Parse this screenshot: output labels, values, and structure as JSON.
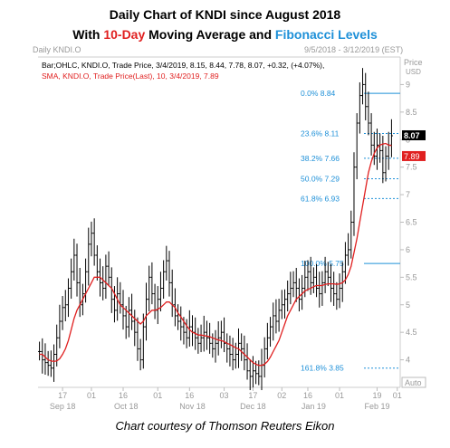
{
  "title_line1": "Daily Chart of KNDI since August 2018",
  "title_line2": {
    "prefix": "With ",
    "ma": "10-Day",
    "middle": " Moving Average and ",
    "fib": "Fibonacci Levels"
  },
  "credit": "Chart courtesy of Thomson Reuters Eikon",
  "colors": {
    "price_bars": "#000000",
    "sma": "#e02020",
    "fib": "#1e90d8",
    "tick_text": "#999999"
  },
  "chart_data": {
    "type": "line",
    "header_left": "Daily KNDI.O",
    "header_right": "9/5/2018 - 3/12/2019 (EST)",
    "price_label": "Price",
    "price_unit": "USD",
    "auto_label": "Auto",
    "legend": [
      {
        "name": "Bar;OHLC, KNDI.O, Trade Price, 3/4/2019, 8.15, 8.44, 7.78, 8.07, +0.32, (+4.07%),"
      },
      {
        "name": "SMA, KNDI.O, Trade Price(Last), 10, 3/4/2019, 7.89"
      }
    ],
    "ylim": [
      3.5,
      9.5
    ],
    "yticks": [
      "4",
      "4.5",
      "5",
      "5.5",
      "6",
      "6.5",
      "7",
      "7.5",
      "8",
      "8.5",
      "9"
    ],
    "xticks": [
      {
        "label": "17",
        "i": 8
      },
      {
        "label": "01",
        "i": 18
      },
      {
        "label": "16",
        "i": 29
      },
      {
        "label": "01",
        "i": 41
      },
      {
        "label": "16",
        "i": 52
      },
      {
        "label": "03",
        "i": 64
      },
      {
        "label": "17",
        "i": 74
      },
      {
        "label": "02",
        "i": 84
      },
      {
        "label": "16",
        "i": 93
      },
      {
        "label": "01",
        "i": 104
      },
      {
        "label": "19",
        "i": 117
      },
      {
        "label": "01",
        "i": 124
      }
    ],
    "months": [
      {
        "label": "Sep 18",
        "i": 8
      },
      {
        "label": "Oct 18",
        "i": 30
      },
      {
        "label": "Nov 18",
        "i": 53
      },
      {
        "label": "Dec 18",
        "i": 74
      },
      {
        "label": "Jan 19",
        "i": 95
      },
      {
        "label": "Feb 19",
        "i": 117
      }
    ],
    "last_price": "8.07",
    "last_sma": "7.89",
    "fib_levels": [
      {
        "pct": "0.0%",
        "value": 8.84
      },
      {
        "pct": "23.6%",
        "value": 8.11
      },
      {
        "pct": "38.2%",
        "value": 7.66
      },
      {
        "pct": "50.0%",
        "value": 7.29
      },
      {
        "pct": "61.8%",
        "value": 6.93
      },
      {
        "pct": "100.0%",
        "value": 5.75
      },
      {
        "pct": "161.8%",
        "value": 3.85
      }
    ],
    "closes": [
      4.15,
      4.0,
      3.95,
      3.9,
      3.85,
      4.1,
      4.4,
      4.7,
      4.95,
      5.0,
      5.3,
      5.6,
      5.9,
      5.4,
      5.0,
      5.2,
      5.6,
      6.1,
      6.3,
      5.9,
      5.6,
      5.4,
      5.3,
      5.7,
      5.5,
      5.1,
      4.9,
      5.2,
      5.0,
      4.8,
      4.6,
      4.9,
      4.7,
      4.5,
      4.2,
      4.0,
      4.6,
      5.1,
      5.5,
      5.2,
      4.9,
      5.1,
      5.3,
      5.6,
      5.8,
      5.4,
      5.0,
      4.8,
      4.7,
      4.6,
      4.5,
      4.4,
      4.6,
      4.5,
      4.4,
      4.3,
      4.4,
      4.5,
      4.4,
      4.3,
      4.2,
      4.3,
      4.4,
      4.5,
      4.3,
      4.2,
      4.1,
      4.0,
      4.1,
      4.3,
      4.2,
      4.0,
      3.8,
      3.7,
      3.8,
      3.75,
      3.7,
      3.9,
      4.2,
      4.4,
      4.6,
      4.8,
      4.7,
      4.9,
      5.0,
      5.1,
      5.2,
      5.3,
      5.4,
      5.3,
      5.1,
      5.3,
      5.5,
      5.6,
      5.4,
      5.5,
      5.3,
      5.2,
      5.4,
      5.6,
      5.5,
      5.3,
      5.2,
      5.1,
      5.3,
      5.6,
      5.9,
      6.0,
      6.5,
      7.5,
      8.3,
      8.8,
      9.0,
      8.6,
      8.3,
      7.9,
      7.7,
      7.9,
      7.8,
      7.4,
      7.7,
      7.9,
      8.07
    ],
    "sma": [
      4.1,
      4.1,
      4.05,
      4.0,
      3.98,
      3.97,
      3.98,
      4.02,
      4.1,
      4.2,
      4.35,
      4.55,
      4.75,
      4.9,
      5.0,
      5.1,
      5.2,
      5.3,
      5.4,
      5.5,
      5.5,
      5.5,
      5.45,
      5.4,
      5.35,
      5.3,
      5.2,
      5.1,
      5.0,
      4.95,
      4.9,
      4.85,
      4.8,
      4.75,
      4.7,
      4.65,
      4.7,
      4.8,
      4.85,
      4.9,
      4.9,
      4.92,
      4.95,
      5.0,
      5.05,
      5.05,
      5.0,
      4.95,
      4.85,
      4.78,
      4.7,
      4.62,
      4.55,
      4.5,
      4.48,
      4.45,
      4.45,
      4.44,
      4.43,
      4.42,
      4.4,
      4.38,
      4.36,
      4.35,
      4.33,
      4.3,
      4.28,
      4.25,
      4.22,
      4.2,
      4.15,
      4.1,
      4.05,
      4.0,
      3.95,
      3.92,
      3.9,
      3.9,
      3.92,
      3.97,
      4.05,
      4.15,
      4.25,
      4.35,
      4.5,
      4.65,
      4.8,
      4.9,
      5.0,
      5.1,
      5.15,
      5.2,
      5.25,
      5.28,
      5.3,
      5.33,
      5.35,
      5.35,
      5.35,
      5.37,
      5.38,
      5.38,
      5.38,
      5.37,
      5.38,
      5.4,
      5.45,
      5.55,
      5.7,
      5.95,
      6.2,
      6.5,
      6.8,
      7.1,
      7.4,
      7.6,
      7.75,
      7.85,
      7.9,
      7.92,
      7.93,
      7.9,
      7.89
    ]
  }
}
